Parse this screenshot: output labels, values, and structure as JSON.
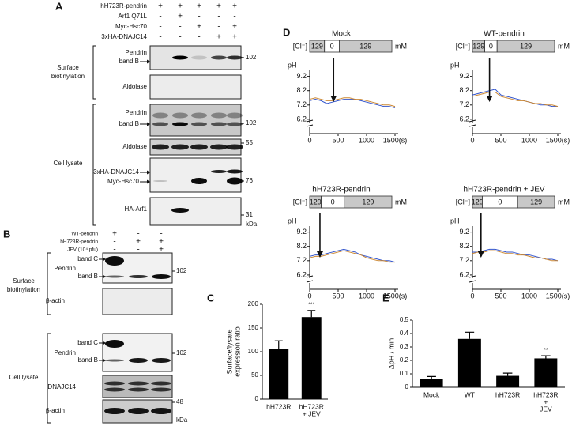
{
  "figure": {
    "panel_labels": [
      "A",
      "B",
      "C",
      "D",
      "E"
    ],
    "A": {
      "conditions": [
        {
          "label": "hH723R-pendrin",
          "signs": [
            "+",
            "+",
            "+",
            "+",
            "+"
          ]
        },
        {
          "label": "Arf1 Q71L",
          "signs": [
            "-",
            "+",
            "-",
            "-",
            "-"
          ]
        },
        {
          "label": "Myc-Hsc70",
          "signs": [
            "-",
            "-",
            "+",
            "-",
            "+"
          ]
        },
        {
          "label": "3xHA-DNAJC14",
          "signs": [
            "-",
            "-",
            "-",
            "+",
            "+"
          ]
        }
      ],
      "sections": [
        [
          "Surface",
          "biotinylation"
        ],
        [
          "Cell lysate"
        ]
      ],
      "blot_labels": [
        "Pendrin",
        "band B",
        "Aldolase",
        "Pendrin",
        "band B",
        "Aldolase",
        "3xHA-DNAJC14",
        "Myc-Hsc70",
        "HA-Arf1"
      ],
      "markers": [
        "102",
        "102",
        "55",
        "76",
        "31",
        "kDa"
      ]
    },
    "B": {
      "conditions": [
        {
          "label": "WT-pendrin",
          "signs": [
            "+",
            "-",
            "-"
          ]
        },
        {
          "label": "hH723R-pendrin",
          "signs": [
            "-",
            "+",
            "+"
          ]
        },
        {
          "label": "JEV (10⁴ pfu)",
          "signs": [
            "-",
            "-",
            "+"
          ]
        }
      ],
      "sections": [
        [
          "Surface",
          "biotinylation"
        ],
        [
          "Cell lysate"
        ]
      ],
      "blot_labels": [
        "band C",
        "Pendrin",
        "band B",
        "β-actin",
        "band C",
        "Pendrin",
        "band B",
        "DNAJC14",
        "β-actin"
      ],
      "markers": [
        "102",
        "102",
        "48",
        "kDa"
      ]
    }
  },
  "chart_data": [
    {
      "type": "line",
      "title": "Mock",
      "cl_label": "[Cl⁻]",
      "cl_segments": [
        "129",
        "0",
        "129"
      ],
      "cl_unit": "mM",
      "ylabel": "pH",
      "x": [
        0,
        100,
        200,
        300,
        400,
        500,
        600,
        700,
        800,
        900,
        1000,
        1100,
        1200,
        1300,
        1400,
        1500
      ],
      "series": [
        {
          "color": "#3355cc",
          "values": [
            7.5,
            7.6,
            7.5,
            7.3,
            7.4,
            7.5,
            7.6,
            7.6,
            7.6,
            7.5,
            7.4,
            7.3,
            7.2,
            7.1,
            7.1,
            7.0
          ]
        },
        {
          "color": "#cc8833",
          "values": [
            7.6,
            7.7,
            7.6,
            7.5,
            7.5,
            7.6,
            7.7,
            7.7,
            7.6,
            7.6,
            7.5,
            7.4,
            7.3,
            7.2,
            7.2,
            7.1
          ]
        }
      ],
      "xlim": [
        0,
        1500
      ],
      "ylim": [
        5.2,
        9.4
      ],
      "xticks": [
        0,
        500,
        1000,
        {
          "value": 1500,
          "label": "1500(s)"
        }
      ],
      "yticks": [
        9.2,
        8.2,
        7.2,
        6.2
      ]
    },
    {
      "type": "line",
      "title": "WT-pendrin",
      "cl_label": "[Cl⁻]",
      "cl_segments": [
        "129",
        "0",
        "129"
      ],
      "cl_unit": "mM",
      "ylabel": "pH",
      "x": [
        0,
        100,
        200,
        300,
        400,
        500,
        600,
        700,
        800,
        900,
        1000,
        1100,
        1200,
        1300,
        1400,
        1500
      ],
      "series": [
        {
          "color": "#3355cc",
          "values": [
            7.9,
            8.0,
            8.1,
            8.2,
            8.3,
            7.9,
            7.8,
            7.7,
            7.6,
            7.5,
            7.4,
            7.3,
            7.2,
            7.2,
            7.1,
            7.1
          ]
        },
        {
          "color": "#cc8833",
          "values": [
            7.8,
            7.9,
            8.0,
            8.1,
            8.1,
            7.8,
            7.7,
            7.6,
            7.5,
            7.5,
            7.4,
            7.3,
            7.3,
            7.2,
            7.2,
            7.1
          ]
        }
      ],
      "xlim": [
        0,
        1500
      ],
      "ylim": [
        5.2,
        9.4
      ],
      "xticks": [
        0,
        500,
        1000,
        {
          "value": 1500,
          "label": "1500(s)"
        }
      ],
      "yticks": [
        9.2,
        8.2,
        7.2,
        6.2
      ]
    },
    {
      "type": "line",
      "title": "hH723R-pendrin",
      "cl_label": "[Cl⁻]",
      "cl_segments": [
        "129",
        "0",
        "129"
      ],
      "cl_unit": "mM",
      "ylabel": "pH",
      "x": [
        0,
        100,
        200,
        300,
        400,
        500,
        600,
        700,
        800,
        900,
        1000,
        1100,
        1200,
        1300,
        1400,
        1500
      ],
      "series": [
        {
          "color": "#3355cc",
          "values": [
            7.5,
            7.6,
            7.6,
            7.7,
            7.8,
            7.9,
            8.0,
            7.9,
            7.8,
            7.6,
            7.5,
            7.4,
            7.3,
            7.2,
            7.2,
            7.1
          ]
        },
        {
          "color": "#cc8833",
          "values": [
            7.4,
            7.5,
            7.5,
            7.6,
            7.7,
            7.8,
            7.9,
            7.8,
            7.7,
            7.6,
            7.4,
            7.3,
            7.2,
            7.2,
            7.1,
            7.1
          ]
        }
      ],
      "xlim": [
        0,
        1500
      ],
      "ylim": [
        5.2,
        9.4
      ],
      "xticks": [
        0,
        500,
        1000,
        {
          "value": 1500,
          "label": "1500(s)"
        }
      ],
      "yticks": [
        9.2,
        8.2,
        7.2,
        6.2
      ]
    },
    {
      "type": "line",
      "title": "hH723R-pendrin + JEV",
      "cl_label": "[Cl⁻]",
      "cl_segments": [
        "129",
        "0",
        "129"
      ],
      "cl_unit": "mM",
      "ylabel": "pH",
      "x": [
        0,
        100,
        200,
        300,
        400,
        500,
        600,
        700,
        800,
        900,
        1000,
        1100,
        1200,
        1300,
        1400,
        1500
      ],
      "series": [
        {
          "color": "#3355cc",
          "values": [
            7.8,
            7.8,
            7.9,
            8.0,
            8.0,
            7.9,
            7.8,
            7.8,
            7.7,
            7.6,
            7.6,
            7.5,
            7.4,
            7.3,
            7.3,
            7.2
          ]
        },
        {
          "color": "#cc8833",
          "values": [
            7.7,
            7.8,
            7.8,
            7.9,
            7.9,
            7.8,
            7.7,
            7.7,
            7.6,
            7.6,
            7.5,
            7.4,
            7.4,
            7.3,
            7.2,
            7.2
          ]
        }
      ],
      "xlim": [
        0,
        1500
      ],
      "ylim": [
        5.2,
        9.4
      ],
      "xticks": [
        0,
        500,
        1000,
        {
          "value": 1500,
          "label": "1500(s)"
        }
      ],
      "yticks": [
        9.2,
        8.2,
        7.2,
        6.2
      ]
    },
    {
      "type": "bar",
      "ylabel": [
        "Surface/lysate",
        "expression ratio"
      ],
      "categories": [
        [
          "hH723R"
        ],
        [
          "hH723R",
          "+ JEV"
        ]
      ],
      "values": [
        105,
        173
      ],
      "errors": [
        18,
        14
      ],
      "significance": [
        null,
        "***"
      ],
      "color": "#000000",
      "ylim": [
        0,
        200
      ],
      "yticks": [
        0,
        50,
        100,
        150,
        200
      ]
    },
    {
      "type": "bar",
      "ylabel": [
        "ΔpH / min"
      ],
      "categories": [
        [
          "Mock"
        ],
        [
          "WT"
        ],
        [
          "hH723R"
        ],
        [
          "hH723R",
          "+",
          "JEV"
        ]
      ],
      "values": [
        0.06,
        0.36,
        0.085,
        0.215
      ],
      "errors": [
        0.02,
        0.05,
        0.02,
        0.02
      ],
      "significance": [
        null,
        null,
        null,
        "**"
      ],
      "color": "#000000",
      "ylim": [
        0,
        0.5
      ],
      "yticks": [
        0,
        0.1,
        0.2,
        0.3,
        0.4,
        0.5
      ]
    }
  ]
}
